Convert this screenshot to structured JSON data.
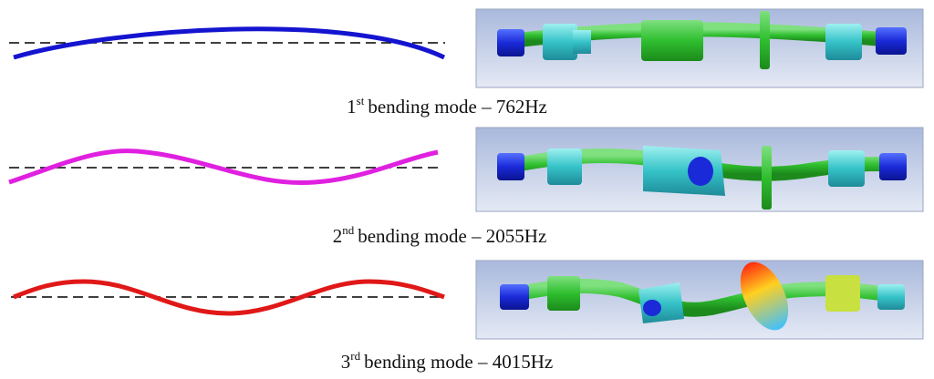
{
  "modes": [
    {
      "number": "1",
      "suffix": "st",
      "text": "bending mode – 762Hz"
    },
    {
      "number": "2",
      "suffix": "nd",
      "text": "bending mode – 2055Hz"
    },
    {
      "number": "3",
      "suffix": "rd",
      "text": "bending mode – 4015Hz"
    }
  ]
}
